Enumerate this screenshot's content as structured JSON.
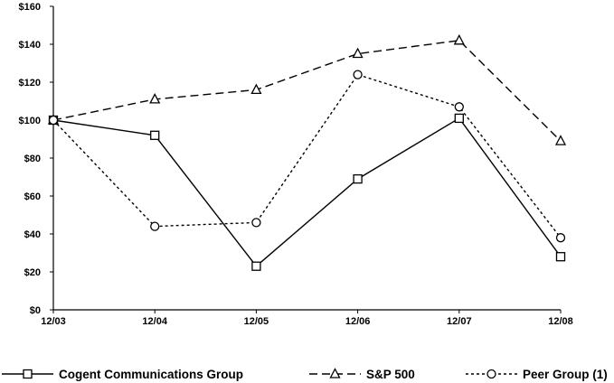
{
  "chart_data": {
    "type": "line",
    "categories": [
      "12/03",
      "12/04",
      "12/05",
      "12/06",
      "12/07",
      "12/08"
    ],
    "ylim": [
      0,
      160
    ],
    "yticks": [
      0,
      20,
      40,
      60,
      80,
      100,
      120,
      140,
      160
    ],
    "ytick_labels": [
      "$0",
      "$20",
      "$40",
      "$60",
      "$80",
      "$100",
      "$120",
      "$140",
      "$160"
    ],
    "grid": false,
    "legend_position": "bottom",
    "series": [
      {
        "name": "Cogent Communications Group",
        "values": [
          100,
          92,
          23,
          69,
          101,
          28
        ],
        "style": "solid",
        "marker": "square",
        "color": "#000000"
      },
      {
        "name": "S&P 500",
        "values": [
          100,
          111,
          116,
          135,
          142,
          89
        ],
        "style": "dashed",
        "marker": "triangle",
        "color": "#000000"
      },
      {
        "name": "Peer Group (1)",
        "values": [
          100,
          44,
          46,
          124,
          107,
          38
        ],
        "style": "dotted",
        "marker": "circle",
        "color": "#000000"
      }
    ]
  }
}
